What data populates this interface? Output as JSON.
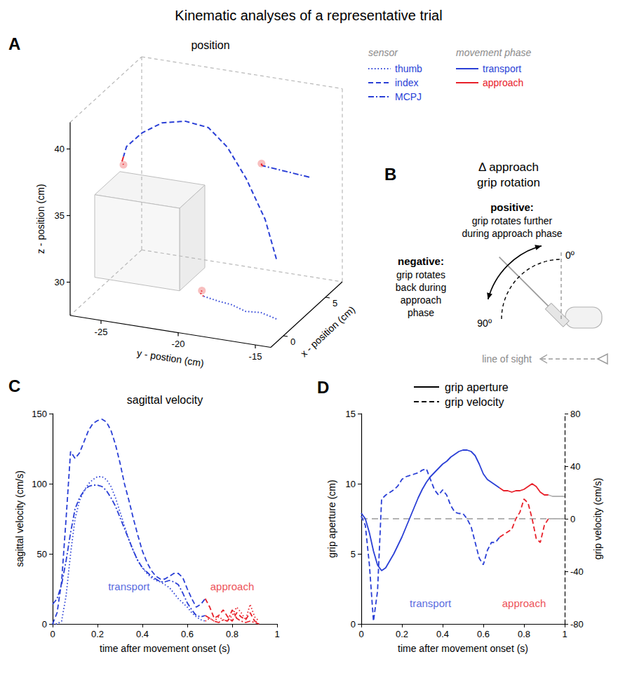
{
  "title": "Kinematic analyses of a representative trial",
  "chart_data": [
    {
      "panel": "A",
      "type": "line3d",
      "title": "position",
      "xlabel": "x - position (cm)",
      "ylabel": "y - postion (cm)",
      "zlabel": "z - position (cm)",
      "xlim": [
        -1.5,
        7
      ],
      "xticks": [
        0,
        5
      ],
      "ylim": [
        -27,
        -14
      ],
      "yticks": [
        -25,
        -20,
        -15
      ],
      "zlim": [
        27.5,
        42
      ],
      "zticks": [
        30,
        35,
        40
      ],
      "legend": "top-right",
      "sensor_title": "sensor",
      "phase_title": "movement phase",
      "phases": [
        {
          "name": "transport",
          "color": "#2a3fd6"
        },
        {
          "name": "approach",
          "color": "#e8202a"
        }
      ],
      "series": [
        {
          "name": "thumb",
          "line_style": "dotted",
          "y": [
            -15,
            -16,
            -17,
            -18,
            -19,
            -20,
            -20.2,
            -20.1
          ],
          "x": [
            1,
            1,
            1,
            1.2,
            1.5,
            1.5,
            1.5,
            1.5
          ],
          "z": [
            28,
            28.3,
            28.2,
            28.4,
            28.3,
            28.5,
            28.7,
            28.9
          ],
          "phase": [
            "transport",
            "transport",
            "transport",
            "transport",
            "transport",
            "transport",
            "approach",
            "approach"
          ]
        },
        {
          "name": "index",
          "line_style": "dashed",
          "y": [
            -15,
            -16,
            -17.5,
            -19,
            -20.5,
            -22,
            -23.5,
            -24.8,
            -25.8,
            -26,
            -26.1,
            -26
          ],
          "x": [
            1,
            1.5,
            2,
            2.5,
            3,
            3,
            3,
            3,
            3,
            3,
            3,
            3
          ],
          "z": [
            32.5,
            35,
            37.5,
            39.3,
            40.2,
            40.4,
            40,
            39,
            37.8,
            37,
            36.6,
            36.4
          ],
          "phase": [
            "transport",
            "transport",
            "transport",
            "transport",
            "transport",
            "transport",
            "transport",
            "transport",
            "transport",
            "transport",
            "approach",
            "approach"
          ]
        },
        {
          "name": "MCPJ",
          "line_style": "dashdot",
          "y": [
            -14.5,
            -15.5,
            -16.5,
            -17.5,
            -17.6,
            -17.6
          ],
          "x": [
            4,
            4,
            4,
            4,
            4,
            4
          ],
          "z": [
            37,
            37.1,
            37.2,
            37.3,
            37.35,
            37.45
          ],
          "phase": [
            "transport",
            "transport",
            "transport",
            "transport",
            "approach",
            "approach"
          ]
        }
      ]
    },
    {
      "panel": "C",
      "type": "line",
      "title": "sagittal velocity",
      "xlabel": "time after movement onset (s)",
      "ylabel": "sagittal velocity (cm/s)",
      "xlim": [
        0,
        1
      ],
      "xticks": [
        0,
        0.2,
        0.4,
        0.6,
        0.8,
        1
      ],
      "ylim": [
        0,
        150
      ],
      "yticks": [
        0,
        50,
        100,
        150
      ],
      "phases": [
        {
          "name": "transport",
          "color": "#2a3fd6",
          "start": 0,
          "end": 0.68
        },
        {
          "name": "approach",
          "color": "#e8202a",
          "start": 0.68,
          "end": 0.92
        }
      ],
      "x": [
        0,
        0.02,
        0.04,
        0.06,
        0.08,
        0.1,
        0.12,
        0.14,
        0.16,
        0.18,
        0.2,
        0.22,
        0.24,
        0.26,
        0.28,
        0.3,
        0.32,
        0.34,
        0.36,
        0.38,
        0.4,
        0.42,
        0.44,
        0.46,
        0.48,
        0.5,
        0.52,
        0.54,
        0.56,
        0.58,
        0.6,
        0.62,
        0.64,
        0.66,
        0.68,
        0.7,
        0.72,
        0.74,
        0.76,
        0.78,
        0.8,
        0.82,
        0.84,
        0.86,
        0.88,
        0.9,
        0.92
      ],
      "series": [
        {
          "name": "thumb",
          "line_style": "dotted",
          "values": [
            0,
            0,
            2,
            20,
            50,
            75,
            88,
            95,
            100,
            103,
            105,
            105,
            103,
            98,
            90,
            80,
            70,
            60,
            52,
            45,
            40,
            36,
            33,
            31,
            30,
            28,
            26,
            22,
            18,
            15,
            12,
            8,
            5,
            3,
            2,
            4,
            2,
            5,
            3,
            2,
            6,
            12,
            8,
            3,
            14,
            5,
            2
          ]
        },
        {
          "name": "index",
          "line_style": "dashed",
          "values": [
            0,
            8,
            30,
            75,
            123,
            118,
            122,
            130,
            138,
            143,
            145,
            146,
            144,
            138,
            128,
            115,
            100,
            88,
            75,
            63,
            52,
            44,
            38,
            34,
            32,
            32,
            34,
            36,
            36,
            33,
            25,
            18,
            12,
            14,
            18,
            12,
            4,
            6,
            10,
            5,
            2,
            8,
            5,
            3,
            8,
            2,
            1
          ]
        },
        {
          "name": "MCPJ",
          "line_style": "dashdot",
          "values": [
            14,
            18,
            28,
            45,
            65,
            82,
            90,
            95,
            98,
            99,
            99,
            98,
            95,
            90,
            84,
            76,
            68,
            60,
            52,
            45,
            40,
            37,
            34,
            32,
            30,
            30,
            31,
            30,
            28,
            22,
            15,
            10,
            6,
            5,
            6,
            4,
            2,
            1,
            3,
            2,
            10,
            4,
            2,
            1,
            2,
            1,
            0
          ]
        }
      ]
    },
    {
      "panel": "D",
      "type": "line",
      "xlabel": "time after movement onset (s)",
      "ylabel": "grip aperture (cm)",
      "y2label": "grip velocity (cm/s)",
      "xlim": [
        0,
        1
      ],
      "xticks": [
        0,
        0.2,
        0.4,
        0.6,
        0.8,
        1
      ],
      "ylim": [
        0,
        15
      ],
      "yticks": [
        0,
        5,
        10,
        15
      ],
      "y2lim": [
        -80,
        80
      ],
      "y2ticks": [
        -80,
        -40,
        0,
        40,
        80
      ],
      "legend": "top",
      "reference_lines": [
        {
          "axis": "y2",
          "value": 0
        }
      ],
      "phases": [
        {
          "name": "transport",
          "color": "#2a3fd6",
          "start": 0,
          "end": 0.68
        },
        {
          "name": "approach",
          "color": "#e8202a",
          "start": 0.68,
          "end": 0.92
        },
        {
          "color": "#b5b5b5",
          "start": 0.92,
          "end": 1
        }
      ],
      "x": [
        0,
        0.02,
        0.04,
        0.06,
        0.08,
        0.1,
        0.12,
        0.14,
        0.16,
        0.18,
        0.2,
        0.22,
        0.24,
        0.26,
        0.28,
        0.3,
        0.32,
        0.34,
        0.36,
        0.38,
        0.4,
        0.42,
        0.44,
        0.46,
        0.48,
        0.5,
        0.52,
        0.54,
        0.56,
        0.58,
        0.6,
        0.62,
        0.64,
        0.66,
        0.68,
        0.7,
        0.72,
        0.74,
        0.76,
        0.78,
        0.8,
        0.82,
        0.84,
        0.86,
        0.88,
        0.9,
        0.92,
        0.94,
        0.96,
        0.98,
        1
      ],
      "series": [
        {
          "name": "grip aperture",
          "line_style": "solid",
          "values": [
            7.9,
            7.5,
            6.5,
            5.2,
            4.2,
            3.8,
            4.0,
            4.5,
            5.0,
            5.6,
            6.2,
            6.9,
            7.6,
            8.3,
            9.0,
            9.6,
            10.1,
            10.5,
            10.8,
            11.1,
            11.4,
            11.6,
            11.9,
            12.1,
            12.3,
            12.4,
            12.4,
            12.3,
            12.0,
            11.4,
            10.7,
            10.3,
            10.1,
            9.9,
            9.7,
            9.5,
            9.5,
            9.4,
            9.5,
            9.5,
            9.6,
            9.8,
            10.0,
            9.8,
            9.4,
            9.2,
            9.2,
            9.1,
            9.1,
            9.1,
            9.1
          ]
        },
        {
          "name": "grip velocity",
          "line_style": "dashed",
          "axis": "y2",
          "values": [
            2,
            -5,
            -35,
            -78,
            -55,
            15,
            18,
            20,
            22,
            25,
            30,
            32,
            33,
            34,
            35,
            37,
            38,
            30,
            22,
            18,
            22,
            18,
            10,
            5,
            4,
            4,
            0,
            -6,
            -18,
            -30,
            -35,
            -24,
            -18,
            -18,
            -14,
            -12,
            -10,
            -8,
            0,
            5,
            15,
            12,
            0,
            -15,
            -18,
            -5,
            0,
            0,
            0,
            0,
            0
          ]
        }
      ]
    }
  ],
  "diagram": {
    "panel": "B",
    "title": "Δ approach grip rotation",
    "positive": {
      "label": "positive:",
      "text": "grip rotates further during approach phase"
    },
    "negative": {
      "label": "negative:",
      "text": "grip rotates back during approach phase"
    },
    "angles": [
      {
        "value": 0,
        "label": "0º"
      },
      {
        "value": 90,
        "label": "90º"
      }
    ],
    "line_of_sight": "line of sight"
  }
}
